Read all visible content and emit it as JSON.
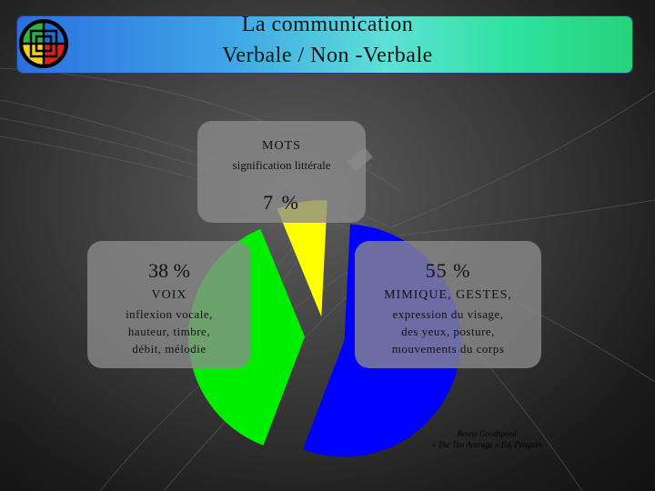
{
  "title": {
    "line1": "La communication",
    "line2": "Verbale / Non -Verbale"
  },
  "colors": {
    "mots": "#ffff00",
    "voix": "#00ee00",
    "mimique": "#0000ff"
  },
  "segments": {
    "mots": {
      "name": "MOTS",
      "description": "signification littérale",
      "percent_label": "7 %",
      "value": 7
    },
    "voix": {
      "percent_label": "38 %",
      "name": "VOIX",
      "lines": [
        "inflexion vocale,",
        "hauteur, timbre,",
        "débit, mélodie"
      ],
      "value": 38
    },
    "mimique": {
      "percent_label": "55 %",
      "name": "MIMIQUE, GESTES,",
      "lines": [
        "expression du visage,",
        "des yeux, posture,",
        "mouvements du corps"
      ],
      "value": 55
    }
  },
  "credit": {
    "line1": "Benny Goodspeed",
    "line2": "« The Tao Average » Ed. Penguin"
  },
  "chart_data": {
    "type": "pie",
    "categories": [
      "MOTS",
      "VOIX",
      "MIMIQUE, GESTES"
    ],
    "values": [
      7,
      38,
      55
    ]
  }
}
